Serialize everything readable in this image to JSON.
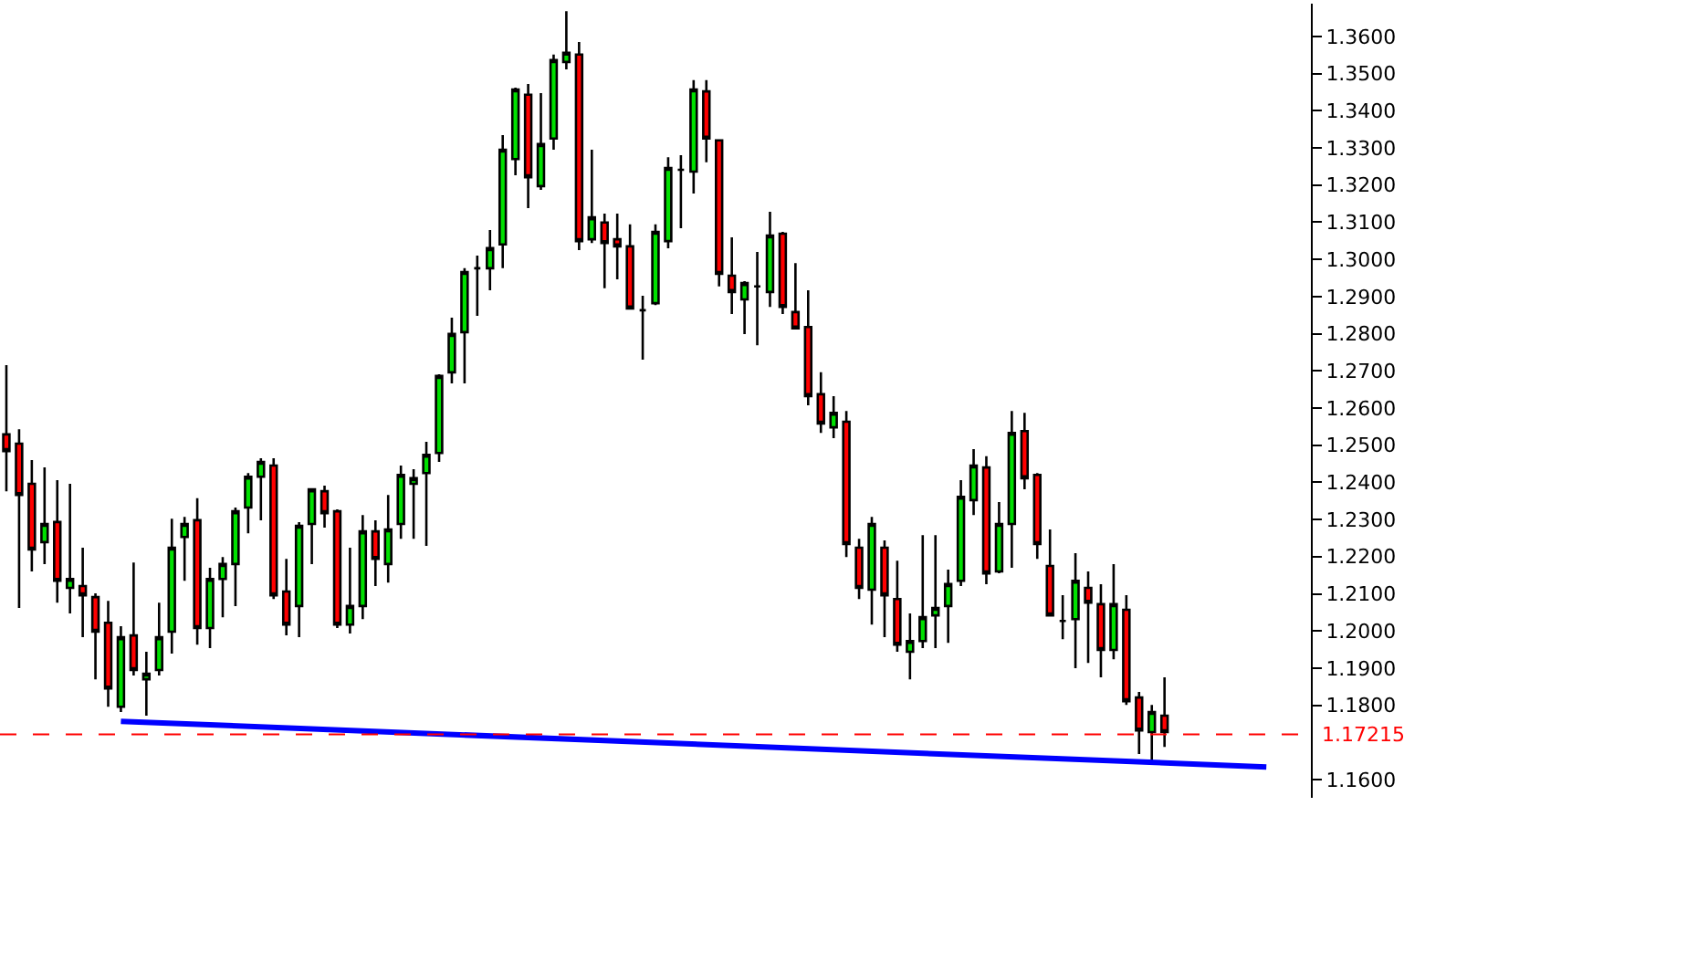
{
  "chart_data": {
    "type": "candlestick",
    "tick_labels": "y",
    "categories": [
      null,
      null,
      null,
      null,
      null,
      null,
      null,
      null,
      null,
      null,
      null,
      null,
      null,
      null,
      null,
      null,
      null,
      null,
      null,
      null,
      null,
      null,
      null,
      null,
      null,
      null,
      null,
      null,
      null,
      null,
      null,
      null,
      null,
      null,
      null,
      null,
      null,
      null,
      null,
      null,
      null,
      null,
      null,
      null,
      null,
      null,
      null,
      null,
      null,
      null,
      null,
      null,
      null,
      null,
      null,
      null,
      null,
      null,
      null,
      null,
      null,
      null,
      null,
      null,
      null,
      null,
      null,
      null,
      null,
      null,
      null,
      null,
      null,
      null,
      null,
      null,
      null,
      null,
      null,
      null,
      null,
      null,
      null,
      null,
      null,
      null,
      null,
      null,
      null,
      null,
      null,
      null,
      null,
      null,
      null,
      null,
      null,
      null,
      null,
      null,
      null,
      null,
      null
    ],
    "ohlc": [
      [
        1.2529,
        1.2715,
        1.2376,
        1.2484
      ],
      [
        1.2504,
        1.2543,
        1.2062,
        1.2366
      ],
      [
        1.2396,
        1.246,
        1.216,
        1.2219
      ],
      [
        1.2239,
        1.244,
        1.218,
        1.2288
      ],
      [
        1.2293,
        1.2406,
        1.2076,
        1.2135
      ],
      [
        1.2116,
        1.2396,
        1.2047,
        1.214
      ],
      [
        1.2121,
        1.2224,
        1.1983,
        1.2096
      ],
      [
        1.2091,
        1.2101,
        1.187,
        1.1998
      ],
      [
        1.2022,
        1.2081,
        1.1796,
        1.1845
      ],
      [
        1.1796,
        1.2013,
        1.1782,
        1.1983
      ],
      [
        1.1988,
        1.2184,
        1.188,
        1.1895
      ],
      [
        1.187,
        1.1944,
        1.1772,
        1.1885
      ],
      [
        1.1895,
        1.2076,
        1.188,
        1.1983
      ],
      [
        1.1998,
        1.2302,
        1.1939,
        1.2224
      ],
      [
        1.2253,
        1.2307,
        1.2135,
        1.2288
      ],
      [
        1.2298,
        1.2357,
        1.1963,
        1.2008
      ],
      [
        1.2008,
        1.217,
        1.1954,
        1.214
      ],
      [
        1.214,
        1.2199,
        1.2037,
        1.218
      ],
      [
        1.218,
        1.2332,
        1.2067,
        1.2322
      ],
      [
        1.2332,
        1.2425,
        1.2263,
        1.2415
      ],
      [
        1.2415,
        1.2465,
        1.2298,
        1.2455
      ],
      [
        1.2445,
        1.2465,
        1.2086,
        1.2096
      ],
      [
        1.2106,
        1.2194,
        1.1988,
        1.2017
      ],
      [
        1.2067,
        1.2293,
        1.1983,
        1.2283
      ],
      [
        1.2288,
        1.2381,
        1.218,
        1.2381
      ],
      [
        1.2376,
        1.2391,
        1.2278,
        1.2317
      ],
      [
        1.2322,
        1.2327,
        1.2008,
        1.2017
      ],
      [
        1.2017,
        1.2224,
        1.1993,
        1.2067
      ],
      [
        1.2067,
        1.2312,
        1.2032,
        1.2268
      ],
      [
        1.2268,
        1.2298,
        1.2121,
        1.2194
      ],
      [
        1.218,
        1.2366,
        1.213,
        1.2273
      ],
      [
        1.2288,
        1.2445,
        1.2248,
        1.242
      ],
      [
        1.2396,
        1.2435,
        1.2248,
        1.2411
      ],
      [
        1.2425,
        1.2509,
        1.2229,
        1.2474
      ],
      [
        1.2479,
        1.2691,
        1.2455,
        1.2686
      ],
      [
        1.2696,
        1.2843,
        1.2666,
        1.2799
      ],
      [
        1.2804,
        1.2976,
        1.2666,
        1.2966
      ],
      [
        1.2976,
        1.301,
        1.2848,
        1.2976
      ],
      [
        1.2976,
        1.3079,
        1.2917,
        1.303
      ],
      [
        1.304,
        1.3334,
        1.2976,
        1.3295
      ],
      [
        1.327,
        1.3462,
        1.3226,
        1.3457
      ],
      [
        1.3443,
        1.3472,
        1.3138,
        1.3221
      ],
      [
        1.3197,
        1.3447,
        1.3187,
        1.331
      ],
      [
        1.3325,
        1.3551,
        1.3295,
        1.3536
      ],
      [
        1.3531,
        1.3668,
        1.3511,
        1.3556
      ],
      [
        1.3551,
        1.3585,
        1.3025,
        1.3049
      ],
      [
        1.3054,
        1.3295,
        1.3044,
        1.3113
      ],
      [
        1.3099,
        1.3123,
        1.2922,
        1.3044
      ],
      [
        1.3054,
        1.3123,
        1.2946,
        1.3035
      ],
      [
        1.3035,
        1.3094,
        1.2868,
        1.2868
      ],
      [
        1.2863,
        1.2902,
        1.273,
        1.2863
      ],
      [
        1.2882,
        1.3094,
        1.2877,
        1.3074
      ],
      [
        1.3049,
        1.3275,
        1.303,
        1.3246
      ],
      [
        1.3241,
        1.328,
        1.3084,
        1.3241
      ],
      [
        1.3236,
        1.3482,
        1.3177,
        1.3457
      ],
      [
        1.3452,
        1.3482,
        1.3261,
        1.3325
      ],
      [
        1.332,
        1.332,
        1.2927,
        1.2961
      ],
      [
        1.2956,
        1.3059,
        1.2853,
        1.2912
      ],
      [
        1.2892,
        1.2941,
        1.2799,
        1.2936
      ],
      [
        1.2927,
        1.302,
        1.2769,
        1.2927
      ],
      [
        1.2912,
        1.3128,
        1.2872,
        1.3064
      ],
      [
        1.3069,
        1.3074,
        1.2853,
        1.2872
      ],
      [
        1.2858,
        1.299,
        1.2814,
        1.2814
      ],
      [
        1.2818,
        1.2917,
        1.2607,
        1.2632
      ],
      [
        1.2637,
        1.2696,
        1.2533,
        1.2558
      ],
      [
        1.2548,
        1.2632,
        1.2519,
        1.2587
      ],
      [
        1.2563,
        1.2592,
        1.2199,
        1.2234
      ],
      [
        1.2224,
        1.2248,
        1.2086,
        1.2116
      ],
      [
        1.2111,
        1.2307,
        1.2017,
        1.2288
      ],
      [
        1.2224,
        1.2244,
        1.1983,
        1.2096
      ],
      [
        1.2086,
        1.2189,
        1.1944,
        1.1963
      ],
      [
        1.1944,
        1.2047,
        1.187,
        1.1973
      ],
      [
        1.1973,
        1.2258,
        1.1954,
        1.2037
      ],
      [
        1.2042,
        1.2258,
        1.1954,
        1.2062
      ],
      [
        1.2067,
        1.2165,
        1.1968,
        1.2126
      ],
      [
        1.2135,
        1.2406,
        1.2121,
        1.2361
      ],
      [
        1.2352,
        1.2489,
        1.2312,
        1.2445
      ],
      [
        1.244,
        1.247,
        1.2126,
        1.2155
      ],
      [
        1.216,
        1.2347,
        1.2155,
        1.2288
      ],
      [
        1.2288,
        1.2592,
        1.217,
        1.2533
      ],
      [
        1.2538,
        1.2587,
        1.2381,
        1.2411
      ],
      [
        1.242,
        1.2425,
        1.2194,
        1.2234
      ],
      [
        1.2175,
        1.2273,
        1.2042,
        1.2042
      ],
      [
        1.2027,
        1.2096,
        1.1978,
        1.2027
      ],
      [
        1.2032,
        1.2209,
        1.19,
        1.2135
      ],
      [
        1.2116,
        1.216,
        1.1914,
        1.2076
      ],
      [
        1.2072,
        1.2126,
        1.1875,
        1.1949
      ],
      [
        1.1949,
        1.218,
        1.1924,
        1.2072
      ],
      [
        1.2057,
        1.2096,
        1.1801,
        1.1811
      ],
      [
        1.1821,
        1.1836,
        1.1669,
        1.1732
      ],
      [
        1.1728,
        1.1801,
        1.1649,
        1.1782
      ],
      [
        1.1772,
        1.1875,
        1.1688,
        1.1728
      ],
      null,
      null,
      null,
      null,
      null,
      null,
      null,
      null,
      null,
      null,
      null
    ],
    "colors": [
      "#ff0000",
      "#ff0000",
      "#ff0000",
      "#00e000",
      "#ff0000",
      "#00e000",
      "#ff0000",
      "#ff0000",
      "#ff0000",
      "#00e000",
      "#ff0000",
      "#00e000",
      "#00e000",
      "#00e000",
      "#00e000",
      "#ff0000",
      "#00e000",
      "#00e000",
      "#00e000",
      "#00e000",
      "#00e000",
      "#ff0000",
      "#ff0000",
      "#00e000",
      "#00e000",
      "#ff0000",
      "#ff0000",
      "#00e000",
      "#00e000",
      "#ff0000",
      "#00e000",
      "#00e000",
      "#00e000",
      "#00e000",
      "#00e000",
      "#00e000",
      "#00e000",
      "#000000",
      "#00e000",
      "#00e000",
      "#00e000",
      "#ff0000",
      "#00e000",
      "#00e000",
      "#00e000",
      "#ff0000",
      "#00e000",
      "#ff0000",
      "#ff0000",
      "#ff0000",
      "#000000",
      "#00e000",
      "#00e000",
      "#000000",
      "#00e000",
      "#ff0000",
      "#ff0000",
      "#ff0000",
      "#00e000",
      "#000000",
      "#00e000",
      "#ff0000",
      "#ff0000",
      "#ff0000",
      "#ff0000",
      "#00e000",
      "#ff0000",
      "#ff0000",
      "#00e000",
      "#ff0000",
      "#ff0000",
      "#00e000",
      "#00e000",
      "#00e000",
      "#00e000",
      "#00e000",
      "#00e000",
      "#ff0000",
      "#00e000",
      "#00e000",
      "#ff0000",
      "#ff0000",
      "#ff0000",
      "#000000",
      "#00e000",
      "#ff0000",
      "#ff0000",
      "#00e000",
      "#ff0000",
      "#ff0000",
      "#00e000",
      "#ff0000",
      null,
      null,
      null,
      null,
      null,
      null,
      null,
      null,
      null,
      null,
      null
    ],
    "series": [
      {
        "type": "line",
        "color": "#0000ff",
        "values": [
          null,
          null,
          null,
          null,
          null,
          null,
          null,
          null,
          null,
          1.1757,
          null,
          null,
          null,
          null,
          null,
          null,
          null,
          null,
          null,
          null,
          null,
          null,
          null,
          null,
          null,
          null,
          null,
          null,
          null,
          null,
          null,
          null,
          null,
          null,
          null,
          null,
          null,
          null,
          null,
          null,
          null,
          null,
          null,
          null,
          null,
          null,
          null,
          null,
          null,
          null,
          null,
          null,
          null,
          null,
          null,
          null,
          null,
          null,
          null,
          null,
          null,
          null,
          null,
          null,
          null,
          null,
          null,
          null,
          null,
          null,
          null,
          null,
          null,
          null,
          null,
          null,
          null,
          null,
          null,
          null,
          null,
          null,
          null,
          null,
          null,
          null,
          null,
          null,
          null,
          null,
          null,
          null,
          null,
          null,
          null,
          null,
          null,
          null,
          null,
          1.1634,
          null,
          null,
          null
        ]
      }
    ],
    "ylim": [
      1.1551,
      1.3688
    ],
    "yticks": [
      {
        "value": 1.16,
        "label": "1.1600"
      },
      {
        "value": 1.18,
        "label": "1.1800"
      },
      {
        "value": 1.19,
        "label": "1.1900"
      },
      {
        "value": 1.2,
        "label": "1.2000"
      },
      {
        "value": 1.21,
        "label": "1.2100"
      },
      {
        "value": 1.22,
        "label": "1.2200"
      },
      {
        "value": 1.23,
        "label": "1.2300"
      },
      {
        "value": 1.24,
        "label": "1.2400"
      },
      {
        "value": 1.25,
        "label": "1.2500"
      },
      {
        "value": 1.26,
        "label": "1.2600"
      },
      {
        "value": 1.27,
        "label": "1.2700"
      },
      {
        "value": 1.28,
        "label": "1.2800"
      },
      {
        "value": 1.29,
        "label": "1.2900"
      },
      {
        "value": 1.3,
        "label": "1.3000"
      },
      {
        "value": 1.31,
        "label": "1.3100"
      },
      {
        "value": 1.32,
        "label": "1.3200"
      },
      {
        "value": 1.33,
        "label": "1.3300"
      },
      {
        "value": 1.34,
        "label": "1.3400"
      },
      {
        "value": 1.35,
        "label": "1.3500"
      },
      {
        "value": 1.36,
        "label": "1.3600"
      }
    ],
    "ref_lines": [
      {
        "axis": "y",
        "value": 1.17215,
        "label": "1.17215",
        "color": "#ff0000",
        "line_style": "dashed"
      }
    ]
  }
}
